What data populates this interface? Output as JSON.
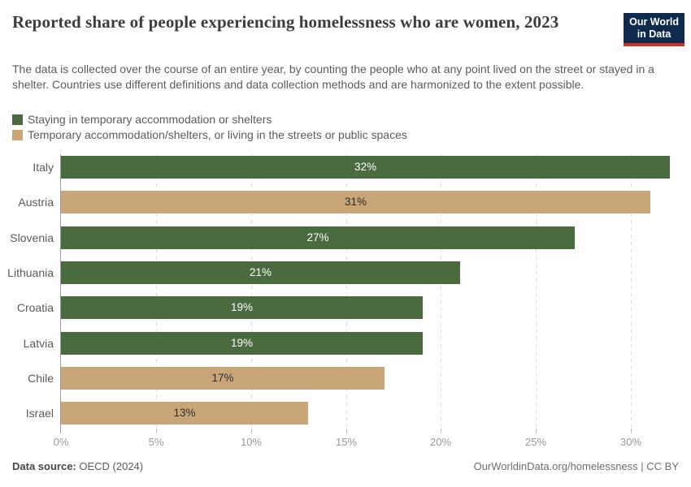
{
  "header": {
    "title": "Reported share of people experiencing homelessness who are women, 2023",
    "subtitle": "The data is collected over the course of an entire year, by counting the people who at any point lived on the street or stayed in a shelter. Countries use different definitions and data collection methods and are harmonized to the extent possible.",
    "logo_line1": "Our World",
    "logo_line2": "in Data"
  },
  "legend": [
    {
      "label": "Staying in temporary accommodation or shelters",
      "color": "#4a6a40"
    },
    {
      "label": "Temporary accommodation/shelters, or living in the streets or public spaces",
      "color": "#c9a678"
    }
  ],
  "chart_data": {
    "type": "bar",
    "orientation": "horizontal",
    "title": "Reported share of people experiencing homelessness who are women, 2023",
    "categories": [
      "Italy",
      "Austria",
      "Slovenia",
      "Lithuania",
      "Croatia",
      "Latvia",
      "Chile",
      "Israel"
    ],
    "values": [
      32,
      31,
      27,
      21,
      19,
      19,
      17,
      13
    ],
    "value_labels": [
      "32%",
      "31%",
      "27%",
      "21%",
      "19%",
      "19%",
      "17%",
      "13%"
    ],
    "bar_series": [
      0,
      1,
      0,
      0,
      0,
      0,
      1,
      1
    ],
    "series": [
      {
        "name": "Staying in temporary accommodation or shelters",
        "color": "#4a6a40"
      },
      {
        "name": "Temporary accommodation/shelters, or living in the streets or public spaces",
        "color": "#c9a678"
      }
    ],
    "xlim": [
      0,
      32.5
    ],
    "x_ticks": [
      "0%",
      "5%",
      "10%",
      "15%",
      "20%",
      "25%",
      "30%"
    ],
    "x_tick_values": [
      0,
      5,
      10,
      15,
      20,
      25,
      30
    ],
    "grid": "vertical-dashed",
    "legend_position": "top-left",
    "value_label_position": "center"
  },
  "footer": {
    "datasource_label": "Data source:",
    "datasource_value": " OECD (2024)",
    "credit": "OurWorldinData.org/homelessness | CC BY"
  },
  "colors": {
    "label_on_green": "#ffffff",
    "label_on_tan": "#2d2d2d",
    "axis_line": "#9b9b9b",
    "gridline": "#dddddd",
    "tick_label": "#999999",
    "text_gray": "#5b5b5b",
    "title_color": "#3d3d3d",
    "logo_bg": "#0e2a4d",
    "logo_stripe": "#d42b21"
  }
}
